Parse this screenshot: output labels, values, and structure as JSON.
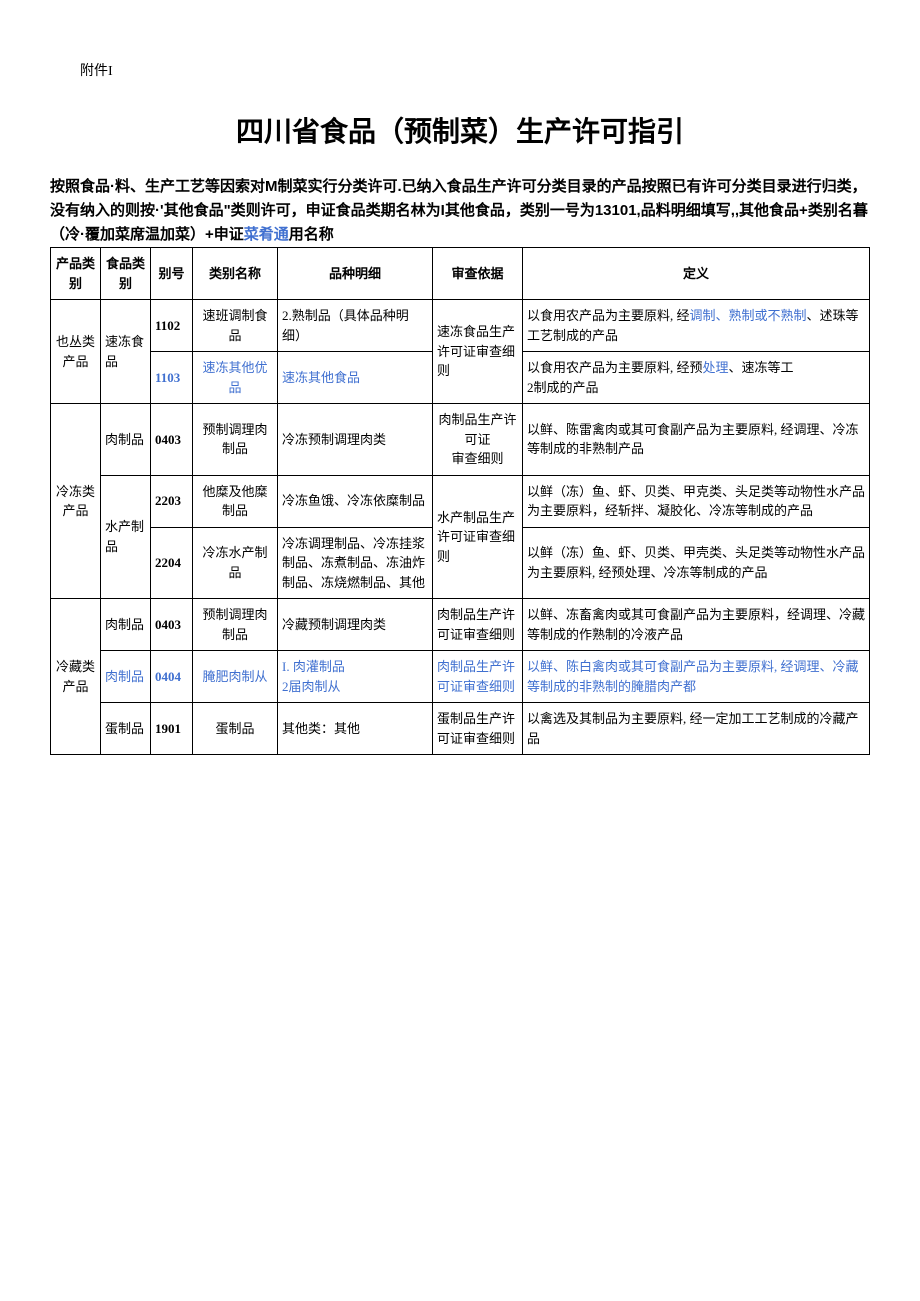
{
  "attachment": "附件I",
  "title": "四川省食品（预制菜）生产许可指引",
  "intro_parts": {
    "p1": "按照食品·料、生产工艺等因索对M制菜实行分类许可.已纳入食品生产许可分类目录的产品按照已有许可分类目录进行归类，没有纳入的则按·'其他食品\"类则许可，申证食品类期名林为I其他食品，类别一号为13101,品料明细填写,,其他食品+类别名暮（冷·覆加菜席温加菜）+申证",
    "p2": "菜肴通",
    "p3": "用名称"
  },
  "headers": {
    "product_cat": "产品类别",
    "food_cat": "食品类别",
    "num": "别号",
    "cat_name": "类别名称",
    "detail": "品种明细",
    "basis": "审查依据",
    "definition": "定义"
  },
  "rows": [
    {
      "product_cat": "也丛类产品",
      "food_cat": "速冻食品",
      "num": "1102",
      "cat_name": "速班调制食品",
      "detail": "2.熟制品（具体品种明细）",
      "basis": "速冻食品生产许可证审查细则",
      "definition_parts": [
        "以食用农产品为主要原料, 经",
        "调制、熟制或不熟制",
        "、述珠等工艺制成的产品"
      ]
    },
    {
      "num": "1103",
      "num_blue": true,
      "cat_name": "速冻其他优品",
      "cat_name_blue": true,
      "detail": "速冻其他食品",
      "detail_blue": true,
      "definition_parts": [
        "以食用农产品为主要原料, 经预",
        "处理",
        "、速冻等工\n2制成的产品"
      ]
    },
    {
      "product_cat": "冷冻类产品",
      "food_cat": "肉制品",
      "num": "0403",
      "cat_name": "预制调理肉制品",
      "detail": "冷冻预制调理肉类",
      "basis": "肉制品生产许可证\n审查细则",
      "definition": "以鲜、陈雷禽肉或其可食副产品为主要原料, 经调理、冷冻等制成的非熟制产品"
    },
    {
      "food_cat": "水产制品",
      "num": "2203",
      "cat_name": "他糜及他糜制品",
      "detail": "冷冻鱼饿、冷冻依糜制品",
      "basis": "水产制品生产许可证审查细则",
      "definition": "以鲜（冻）鱼、虾、贝类、甲克类、头足类等动物性水产品为主要原料，经斩拌、凝胶化、冷冻等制成的产品"
    },
    {
      "num": "2204",
      "cat_name": "冷冻水产制品",
      "detail": "冷冻调理制品、冷冻挂浆制品、冻煮制品、冻油炸制品、冻烧燃制品、其他",
      "definition": "以鲜（冻）鱼、虾、贝类、甲壳类、头足类等动物性水产品为主要原料, 经预处理、冷冻等制成的产品"
    },
    {
      "product_cat": "冷藏类产品",
      "food_cat": "肉制品",
      "num": "0403",
      "cat_name": "预制调理肉制品",
      "detail": "冷藏预制调理肉类",
      "basis": "肉制品生产许可证审查细则",
      "definition": "以鲜、冻畜禽肉或其可食副产品为主要原料，经调理、冷藏等制成的作熟制的冷液产品"
    },
    {
      "food_cat": "肉制品",
      "food_cat_blue": true,
      "num": "0404",
      "num_blue": true,
      "cat_name": "腌肥肉制从",
      "cat_name_blue": true,
      "detail": "I. 肉灌制品\n2届肉制从",
      "detail_blue": true,
      "basis": "肉制品生产许可证审查细则",
      "basis_blue": true,
      "definition": "以鲜、陈白禽肉或其可食副产品为主要原料, 经调理、冷藏等制成的非熟制的腌腊肉产都",
      "definition_blue": true
    },
    {
      "food_cat": "蛋制品",
      "num": "1901",
      "cat_name": "蛋制品",
      "detail": "其他类：其他",
      "basis": "蛋制品生产许可证审查细则",
      "definition": "以禽选及其制品为主要原料, 经一定加工工艺制成的冷藏产品"
    }
  ]
}
